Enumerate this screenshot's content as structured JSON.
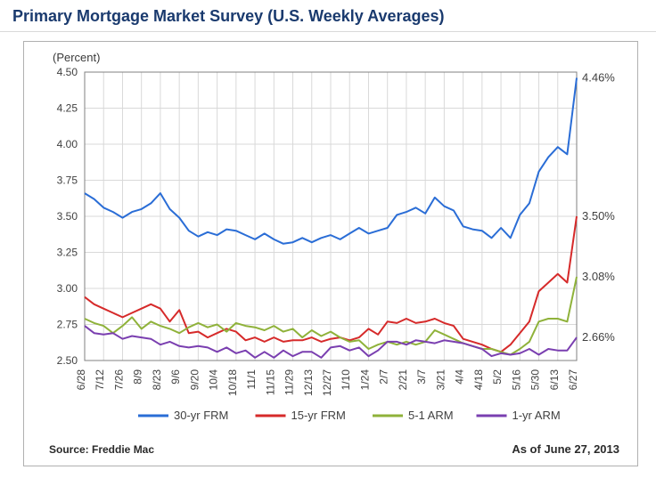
{
  "page": {
    "title": "Primary Mortgage Market Survey (U.S. Weekly Averages)",
    "title_color": "#1a3a6e",
    "title_fontsize": 18
  },
  "chart": {
    "type": "line",
    "y_axis_title": "(Percent)",
    "ylim": [
      2.5,
      4.5
    ],
    "ytick_step": 0.25,
    "yticks": [
      "2.50",
      "2.75",
      "3.00",
      "3.25",
      "3.50",
      "3.75",
      "4.00",
      "4.25",
      "4.50"
    ],
    "x_categories": [
      "6/28",
      "7/12",
      "7/26",
      "8/9",
      "8/23",
      "9/6",
      "9/20",
      "10/4",
      "10/18",
      "11/1",
      "11/15",
      "11/29",
      "12/13",
      "12/27",
      "1/10",
      "1/24",
      "2/7",
      "2/21",
      "3/7",
      "3/21",
      "4/4",
      "4/18",
      "5/2",
      "5/16",
      "5/30",
      "6/13",
      "6/27"
    ],
    "n_points": 53,
    "grid_color": "#d9d9d9",
    "axis_color": "#808080",
    "background_color": "#ffffff",
    "line_width": 2,
    "label_fontsize": 13,
    "tick_fontsize": 12,
    "series": [
      {
        "name": "30-yr FRM",
        "color": "#2a6dd6",
        "end_label": "4.46%",
        "values": [
          3.66,
          3.62,
          3.56,
          3.53,
          3.49,
          3.53,
          3.55,
          3.59,
          3.66,
          3.55,
          3.49,
          3.4,
          3.36,
          3.39,
          3.37,
          3.41,
          3.4,
          3.37,
          3.34,
          3.38,
          3.34,
          3.31,
          3.32,
          3.35,
          3.32,
          3.35,
          3.37,
          3.34,
          3.38,
          3.42,
          3.38,
          3.4,
          3.42,
          3.51,
          3.53,
          3.56,
          3.52,
          3.63,
          3.57,
          3.54,
          3.43,
          3.41,
          3.4,
          3.35,
          3.42,
          3.35,
          3.51,
          3.59,
          3.81,
          3.91,
          3.98,
          3.93,
          4.46
        ]
      },
      {
        "name": "15-yr FRM",
        "color": "#d62a2a",
        "end_label": "3.50%",
        "values": [
          2.94,
          2.89,
          2.86,
          2.83,
          2.8,
          2.83,
          2.86,
          2.89,
          2.86,
          2.77,
          2.85,
          2.69,
          2.7,
          2.66,
          2.69,
          2.72,
          2.7,
          2.64,
          2.66,
          2.63,
          2.66,
          2.63,
          2.64,
          2.64,
          2.66,
          2.63,
          2.65,
          2.66,
          2.64,
          2.66,
          2.72,
          2.68,
          2.77,
          2.76,
          2.79,
          2.76,
          2.77,
          2.79,
          2.76,
          2.74,
          2.65,
          2.63,
          2.61,
          2.58,
          2.56,
          2.61,
          2.69,
          2.77,
          2.98,
          3.04,
          3.1,
          3.04,
          3.5
        ]
      },
      {
        "name": "5-1 ARM",
        "color": "#8fb23a",
        "end_label": "3.08%",
        "values": [
          2.79,
          2.76,
          2.74,
          2.69,
          2.74,
          2.8,
          2.72,
          2.77,
          2.74,
          2.72,
          2.69,
          2.73,
          2.76,
          2.73,
          2.75,
          2.7,
          2.76,
          2.74,
          2.73,
          2.71,
          2.74,
          2.7,
          2.72,
          2.66,
          2.71,
          2.67,
          2.7,
          2.66,
          2.63,
          2.64,
          2.58,
          2.61,
          2.63,
          2.61,
          2.63,
          2.61,
          2.63,
          2.71,
          2.68,
          2.65,
          2.62,
          2.6,
          2.58,
          2.58,
          2.56,
          2.54,
          2.58,
          2.63,
          2.77,
          2.79,
          2.79,
          2.77,
          3.08
        ]
      },
      {
        "name": "1-yr ARM",
        "color": "#7a3fb0",
        "end_label": "2.66%",
        "values": [
          2.74,
          2.69,
          2.68,
          2.69,
          2.65,
          2.67,
          2.66,
          2.65,
          2.61,
          2.63,
          2.6,
          2.59,
          2.6,
          2.59,
          2.56,
          2.59,
          2.55,
          2.57,
          2.52,
          2.56,
          2.52,
          2.57,
          2.53,
          2.56,
          2.56,
          2.52,
          2.59,
          2.6,
          2.57,
          2.59,
          2.53,
          2.57,
          2.63,
          2.63,
          2.61,
          2.64,
          2.63,
          2.62,
          2.64,
          2.63,
          2.62,
          2.6,
          2.58,
          2.53,
          2.55,
          2.54,
          2.55,
          2.58,
          2.54,
          2.58,
          2.57,
          2.57,
          2.66
        ]
      }
    ],
    "legend": {
      "items": [
        "30-yr FRM",
        "15-yr FRM",
        "5-1 ARM",
        "1-yr ARM"
      ],
      "position": "bottom"
    },
    "source_text": "Source: Freddie Mac",
    "asof_text": "As of June 27, 2013"
  }
}
